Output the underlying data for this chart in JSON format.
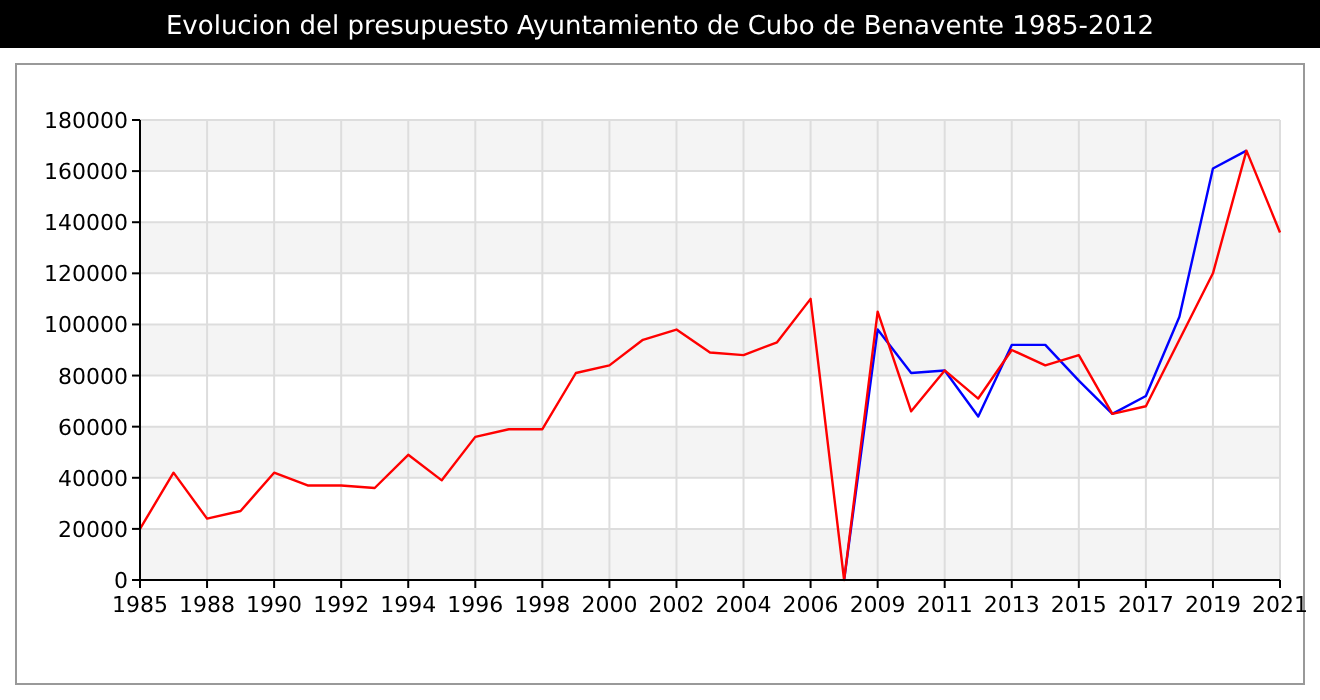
{
  "chart_data": {
    "type": "line",
    "title": "Evolucion del presupuesto Ayuntamiento de Cubo de Benavente 1985-2012",
    "categories": [
      "1985",
      null,
      "1988",
      null,
      "1990",
      null,
      "1992",
      null,
      "1994",
      null,
      "1996",
      null,
      "1998",
      null,
      "2000",
      null,
      "2002",
      null,
      "2004",
      null,
      "2006",
      null,
      "2009",
      null,
      "2011",
      null,
      "2013",
      null,
      "2015",
      null,
      "2017",
      null,
      "2019",
      null,
      "2021"
    ],
    "series": [
      {
        "color": "#0000ff",
        "values": [
          null,
          null,
          null,
          null,
          null,
          null,
          null,
          null,
          null,
          null,
          null,
          null,
          null,
          null,
          null,
          null,
          null,
          null,
          null,
          null,
          null,
          0,
          98000,
          81000,
          82000,
          64000,
          92000,
          92000,
          78000,
          65000,
          72000,
          103000,
          161000,
          168000,
          null
        ]
      },
      {
        "color": "#ff0000",
        "values": [
          20000,
          42000,
          24000,
          27000,
          42000,
          37000,
          37000,
          36000,
          49000,
          39000,
          56000,
          59000,
          59000,
          81000,
          84000,
          94000,
          98000,
          89000,
          88000,
          93000,
          110000,
          0,
          105000,
          66000,
          82000,
          71000,
          90000,
          84000,
          88000,
          65000,
          68000,
          94000,
          120000,
          168000,
          136000
        ]
      }
    ],
    "ylim": [
      0,
      180000
    ],
    "yticks": [
      0,
      20000,
      40000,
      60000,
      80000,
      100000,
      120000,
      140000,
      160000,
      180000
    ],
    "grid": true
  }
}
